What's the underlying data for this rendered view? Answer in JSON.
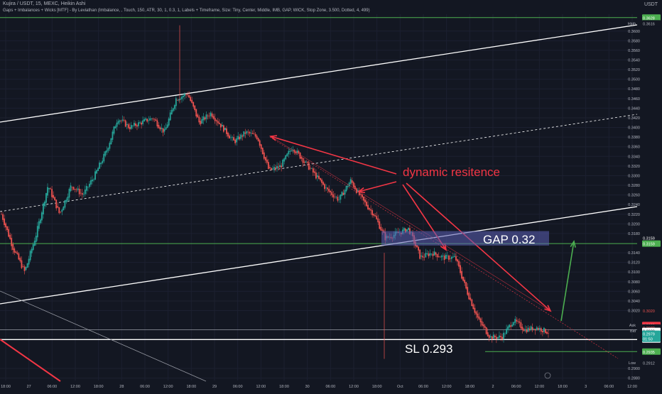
{
  "header": {
    "symbol_line": "Kujira / USDT, 15, MEXC, Heikin Ashi",
    "indicator_line": "Gaps + Imbalances + Wicks [MTF] - By Leviathan (Imbalance, , Touch, 150, ATR, 30, 1, 0.3, 1, Labels + Timeframe, Size: Tiny, Center, Middle, IMB, GAP, WICK, Stop Zone, 3.500, Dotted, 4, 499)",
    "currency": "USDT"
  },
  "annotations": {
    "dynamic": "dynamic resitence",
    "gap": "GAP 0.32",
    "sl": "SL 0.293"
  },
  "price_tags": {
    "high_label": "High",
    "low_label": "Low",
    "ask_label": "Ask",
    "bid_label": "Bid",
    "high_value": "0.3616",
    "low_value": "0.2912",
    "top_green": "0.3628",
    "gap_top": "0.3159",
    "gap_bottom": "0.3159",
    "ask_value": "0.2989",
    "ask_value2": "0.2980",
    "bid_value": "0.2980",
    "last_value": "0.2979",
    "last_time": "01:50",
    "sl_line": "0.2960",
    "green_low": "0.2935",
    "top_right_tag": "0.3020"
  },
  "colors": {
    "background": "#131722",
    "up": "#26a69a",
    "down": "#ef5350",
    "green_line": "#4caf50",
    "annotation": "#f23645",
    "gap_box": "#5b5fb5"
  },
  "chart_data": {
    "type": "candlestick",
    "title": "Kujira / USDT, 15, MEXC, Heikin Ashi",
    "ylim": [
      0.2875,
      0.3635
    ],
    "y_ticks": [
      "0.3600",
      "0.3580",
      "0.3560",
      "0.3540",
      "0.3520",
      "0.3500",
      "0.3480",
      "0.3460",
      "0.3440",
      "0.3420",
      "0.3400",
      "0.3380",
      "0.3360",
      "0.3340",
      "0.3320",
      "0.3300",
      "0.3280",
      "0.3260",
      "0.3240",
      "0.3220",
      "0.3200",
      "0.3180",
      "0.3140",
      "0.3120",
      "0.3100",
      "0.3080",
      "0.3060",
      "0.3040",
      "0.3020",
      "0.2900",
      "0.2880"
    ],
    "x_ticks": [
      "18:00",
      "27",
      "06:00",
      "12:00",
      "18:00",
      "28",
      "06:00",
      "12:00",
      "18:00",
      "29",
      "06:00",
      "12:00",
      "18:00",
      "30",
      "06:00",
      "12:00",
      "18:00",
      "Oct",
      "06:00",
      "12:00",
      "18:00",
      "2",
      "06:00",
      "12:00",
      "18:00",
      "3",
      "06:00",
      "12:00"
    ],
    "close_path": [
      0.322,
      0.315,
      0.31,
      0.318,
      0.328,
      0.322,
      0.328,
      0.326,
      0.33,
      0.335,
      0.342,
      0.34,
      0.341,
      0.342,
      0.339,
      0.346,
      0.347,
      0.341,
      0.343,
      0.34,
      0.337,
      0.339,
      0.338,
      0.331,
      0.332,
      0.336,
      0.333,
      0.33,
      0.327,
      0.325,
      0.329,
      0.325,
      0.322,
      0.317,
      0.318,
      0.319,
      0.313,
      0.314,
      0.313,
      0.313,
      0.306,
      0.3,
      0.2965,
      0.2965,
      0.3,
      0.298,
      0.2985,
      0.2975
    ],
    "levels": {
      "top_line": 0.3628,
      "gap_line": 0.3159,
      "sl_line": 0.296,
      "green_low": 0.2935
    },
    "gap_zone": [
      0.3155,
      0.3185
    ],
    "grid": true
  }
}
